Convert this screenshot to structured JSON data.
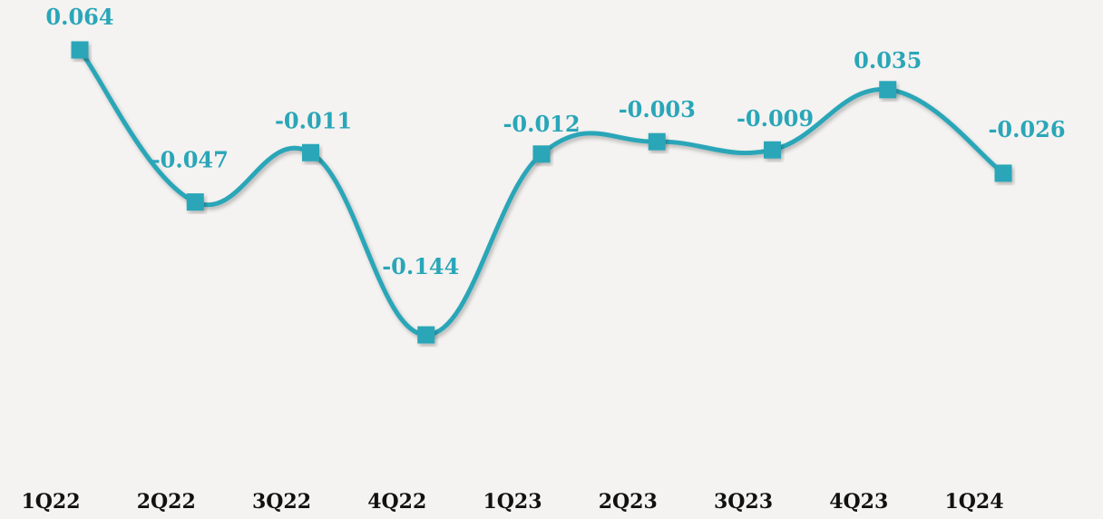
{
  "chart_data": {
    "type": "line",
    "categories": [
      "1Q22",
      "2Q22",
      "3Q22",
      "4Q22",
      "1Q23",
      "2Q23",
      "3Q23",
      "4Q23",
      "1Q24"
    ],
    "series": [
      {
        "values": [
          0.064,
          -0.047,
          -0.011,
          -0.144,
          -0.012,
          -0.003,
          -0.009,
          0.035,
          -0.026
        ],
        "labels": [
          "0.064",
          "-0.047",
          "-0.011",
          "-0.144",
          "-0.012",
          "-0.003",
          "-0.009",
          "0.035",
          "-0.026"
        ]
      }
    ],
    "title": "",
    "xlabel": "",
    "ylabel": "",
    "grid": false,
    "legend": "none",
    "colors": {
      "line": "#2aa6b8",
      "labels": "#2aa6b8",
      "ticks": "#111111",
      "background": "#f4f3f1"
    }
  }
}
